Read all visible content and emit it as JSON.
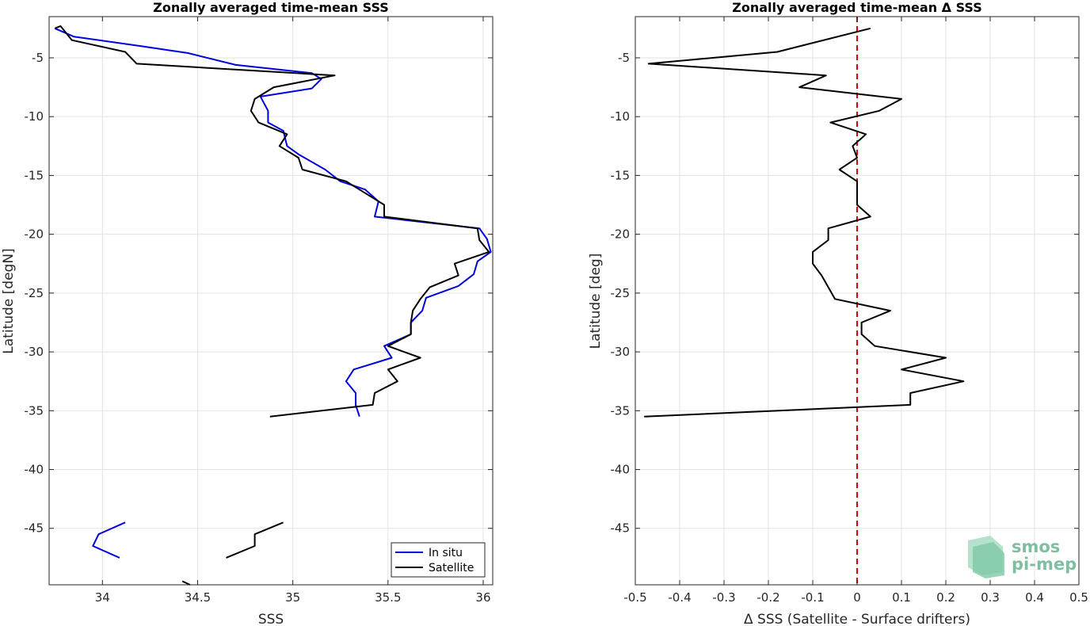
{
  "chart_data": [
    {
      "type": "line",
      "title": "Zonally averaged time-mean SSS",
      "xlabel": "SSS",
      "ylabel": "Latitude [degN]",
      "xlim": [
        33.72,
        36.05
      ],
      "ylim": [
        -49.8,
        -1.5
      ],
      "xticks": [
        34,
        34.5,
        35,
        35.5,
        36
      ],
      "xtick_labels": [
        "34",
        "34.5",
        "35",
        "35.5",
        "36"
      ],
      "yticks": [
        -5,
        -10,
        -15,
        -20,
        -25,
        -30,
        -35,
        -40,
        -45
      ],
      "ytick_labels": [
        "-5",
        "-10",
        "-15",
        "-20",
        "-25",
        "-30",
        "-35",
        "-40",
        "-45"
      ],
      "grid": true,
      "legend_position": "bottom-right",
      "series": [
        {
          "name": "In situ",
          "color": "#0000dd",
          "segments": [
            [
              [
                33.75,
                -2.5
              ],
              [
                33.85,
                -3.2
              ],
              [
                34.2,
                -4.0
              ],
              [
                34.45,
                -4.6
              ],
              [
                34.7,
                -5.6
              ],
              [
                35.1,
                -6.3
              ],
              [
                35.15,
                -6.8
              ],
              [
                35.1,
                -7.6
              ],
              [
                34.83,
                -8.3
              ],
              [
                34.87,
                -9.5
              ],
              [
                34.87,
                -10.5
              ],
              [
                34.95,
                -11.2
              ],
              [
                34.97,
                -12.5
              ],
              [
                35.03,
                -13.2
              ],
              [
                35.17,
                -14.5
              ],
              [
                35.25,
                -15.5
              ],
              [
                35.38,
                -16.2
              ],
              [
                35.45,
                -17.2
              ],
              [
                35.43,
                -18.5
              ],
              [
                35.98,
                -19.5
              ],
              [
                36.02,
                -20.4
              ],
              [
                36.04,
                -21.5
              ],
              [
                35.97,
                -22.3
              ],
              [
                35.95,
                -23.4
              ],
              [
                35.87,
                -24.4
              ],
              [
                35.7,
                -25.4
              ],
              [
                35.68,
                -26.5
              ],
              [
                35.62,
                -27.5
              ],
              [
                35.62,
                -28.5
              ],
              [
                35.48,
                -29.5
              ],
              [
                35.52,
                -30.5
              ],
              [
                35.32,
                -31.5
              ],
              [
                35.28,
                -32.5
              ],
              [
                35.33,
                -33.5
              ],
              [
                35.33,
                -34.5
              ],
              [
                35.35,
                -35.5
              ]
            ],
            [
              [
                34.12,
                -44.5
              ],
              [
                33.98,
                -45.5
              ],
              [
                33.95,
                -46.5
              ],
              [
                34.09,
                -47.5
              ]
            ]
          ]
        },
        {
          "name": "Satellite",
          "color": "#000000",
          "segments": [
            [
              [
                33.75,
                -2.5
              ],
              [
                33.78,
                -2.3
              ],
              [
                33.84,
                -3.5
              ],
              [
                34.12,
                -4.5
              ],
              [
                34.18,
                -5.5
              ],
              [
                35.22,
                -6.5
              ],
              [
                34.9,
                -7.5
              ],
              [
                34.8,
                -8.5
              ],
              [
                34.78,
                -9.5
              ],
              [
                34.82,
                -10.5
              ],
              [
                34.97,
                -11.5
              ],
              [
                34.93,
                -12.5
              ],
              [
                35.03,
                -13.5
              ],
              [
                35.05,
                -14.5
              ],
              [
                35.28,
                -15.5
              ],
              [
                35.38,
                -16.5
              ],
              [
                35.48,
                -17.5
              ],
              [
                35.48,
                -18.5
              ],
              [
                35.97,
                -19.5
              ],
              [
                35.98,
                -20.5
              ],
              [
                36.03,
                -21.5
              ],
              [
                35.85,
                -22.5
              ],
              [
                35.87,
                -23.5
              ],
              [
                35.72,
                -24.5
              ],
              [
                35.67,
                -25.5
              ],
              [
                35.63,
                -26.5
              ],
              [
                35.62,
                -27.5
              ],
              [
                35.62,
                -28.5
              ],
              [
                35.5,
                -29.5
              ],
              [
                35.67,
                -30.5
              ],
              [
                35.5,
                -31.5
              ],
              [
                35.55,
                -32.5
              ],
              [
                35.43,
                -33.5
              ],
              [
                35.42,
                -34.5
              ],
              [
                34.88,
                -35.5
              ]
            ],
            [
              [
                34.95,
                -44.5
              ],
              [
                34.8,
                -45.5
              ],
              [
                34.8,
                -46.5
              ],
              [
                34.65,
                -47.5
              ]
            ],
            [
              [
                34.42,
                -49.5
              ],
              [
                34.46,
                -49.8
              ]
            ]
          ]
        }
      ]
    },
    {
      "type": "line",
      "title": "Zonally averaged time-mean Δ SSS",
      "xlabel": "Δ SSS (Satellite - Surface drifters)",
      "ylabel": "Latitude [deg]",
      "xlim": [
        -0.5,
        0.5
      ],
      "ylim": [
        -49.8,
        -1.5
      ],
      "xticks": [
        -0.5,
        -0.4,
        -0.3,
        -0.2,
        -0.1,
        0,
        0.1,
        0.2,
        0.3,
        0.4,
        0.5
      ],
      "xtick_labels": [
        "-0.5",
        "-0.4",
        "-0.3",
        "-0.2",
        "-0.1",
        "0",
        "0.1",
        "0.2",
        "0.3",
        "0.4",
        "0.5"
      ],
      "yticks": [
        -5,
        -10,
        -15,
        -20,
        -25,
        -30,
        -35,
        -40,
        -45
      ],
      "ytick_labels": [
        "-5",
        "-10",
        "-15",
        "-20",
        "-25",
        "-30",
        "-35",
        "-40",
        "-45"
      ],
      "grid": true,
      "reference_line": {
        "x": 0,
        "color": "#dd0000",
        "style": "dashed"
      },
      "series": [
        {
          "color": "#000000",
          "segments": [
            [
              [
                0.03,
                -2.5
              ],
              [
                -0.18,
                -4.5
              ],
              [
                -0.47,
                -5.5
              ],
              [
                -0.07,
                -6.5
              ],
              [
                -0.13,
                -7.5
              ],
              [
                0.1,
                -8.5
              ],
              [
                0.05,
                -9.5
              ],
              [
                -0.06,
                -10.5
              ],
              [
                0.02,
                -11.5
              ],
              [
                -0.01,
                -12.5
              ],
              [
                0.0,
                -13.5
              ],
              [
                -0.04,
                -14.5
              ],
              [
                0.0,
                -15.5
              ],
              [
                0.0,
                -16.5
              ],
              [
                0.0,
                -17.5
              ],
              [
                0.03,
                -18.5
              ],
              [
                -0.065,
                -19.5
              ],
              [
                -0.065,
                -20.5
              ],
              [
                -0.1,
                -21.5
              ],
              [
                -0.1,
                -22.5
              ],
              [
                -0.08,
                -23.5
              ],
              [
                -0.05,
                -25.5
              ],
              [
                0.075,
                -26.5
              ],
              [
                0.01,
                -27.5
              ],
              [
                0.01,
                -28.5
              ],
              [
                0.04,
                -29.5
              ],
              [
                0.2,
                -30.5
              ],
              [
                0.1,
                -31.5
              ],
              [
                0.24,
                -32.5
              ],
              [
                0.12,
                -33.5
              ],
              [
                0.12,
                -34.5
              ],
              [
                -0.48,
                -35.5
              ]
            ]
          ]
        }
      ]
    }
  ],
  "logo": {
    "line1": "smos",
    "line2": "pi-mep"
  }
}
